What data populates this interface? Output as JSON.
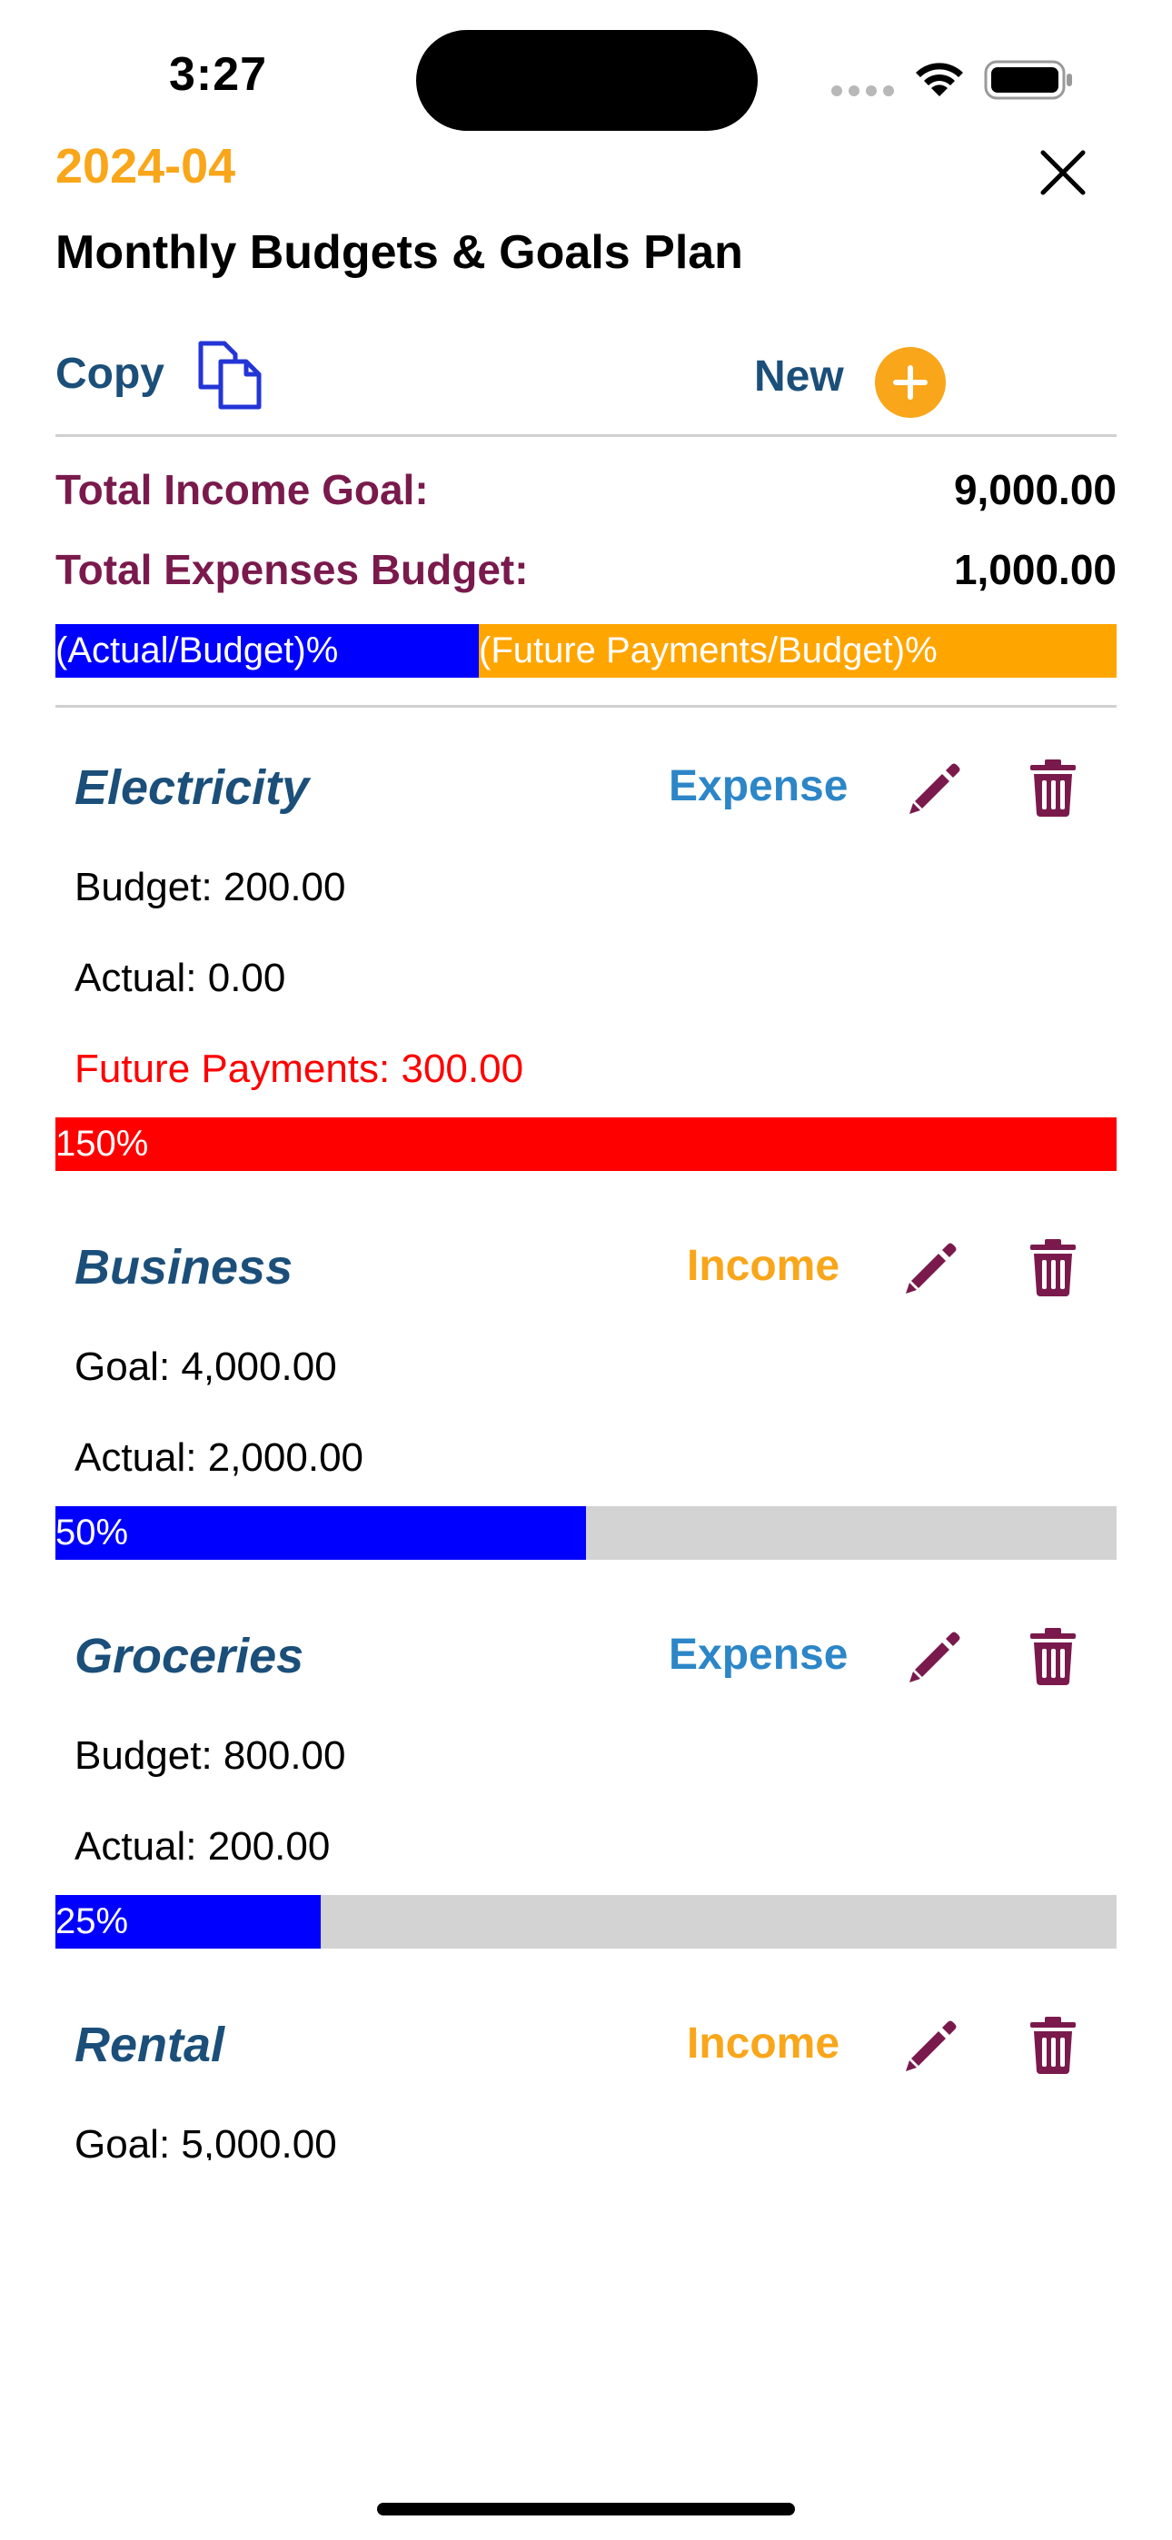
{
  "status_bar": {
    "time": "3:27"
  },
  "header": {
    "month": "2024-04",
    "title": "Monthly Budgets & Goals Plan"
  },
  "actions": {
    "copy_label": "Copy",
    "new_label": "New"
  },
  "totals": {
    "income_label": "Total Income Goal:",
    "income_value": "9,000.00",
    "expenses_label": "Total Expenses Budget:",
    "expenses_value": "1,000.00"
  },
  "legend": {
    "actual_label": "(Actual/Budget)%",
    "future_label": "(Future Payments/Budget)%",
    "actual_color": "#0000FF",
    "future_color": "#FFA500"
  },
  "items": [
    {
      "name": "Electricity",
      "type": "Expense",
      "line1": "Budget: 200.00",
      "line2": "Actual: 0.00",
      "line3": "Future Payments: 300.00",
      "percent_label": "150%",
      "progress_fraction": 1.0,
      "bar_color": "#FF0000"
    },
    {
      "name": "Business",
      "type": "Income",
      "line1": "Goal: 4,000.00",
      "line2": "Actual: 2,000.00",
      "percent_label": "50%",
      "progress_fraction": 0.5,
      "bar_color": "#0000FF"
    },
    {
      "name": "Groceries",
      "type": "Expense",
      "line1": "Budget: 800.00",
      "line2": "Actual: 200.00",
      "percent_label": "25%",
      "progress_fraction": 0.25,
      "bar_color": "#0000FF"
    },
    {
      "name": "Rental",
      "type": "Income",
      "line1": "Goal: 5,000.00"
    }
  ],
  "colors": {
    "accent_orange": "#F9A61A",
    "title_blue": "#1B4F7A",
    "label_maroon": "#7A1A4C",
    "expense_blue": "#2C86C7",
    "progress_track": "#D3D3D3"
  },
  "icons": {
    "copy": "copy-icon",
    "new": "plus-circle-icon",
    "close": "close-icon",
    "edit": "pencil-icon",
    "delete": "trash-icon"
  }
}
